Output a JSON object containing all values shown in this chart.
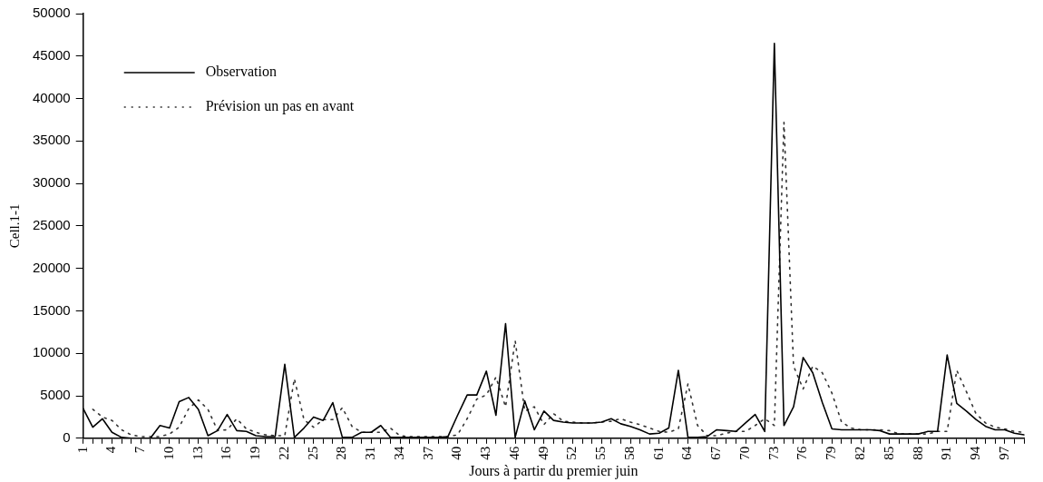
{
  "chart_data": {
    "type": "line",
    "xlabel": "Jours à partir du premier juin",
    "ylabel": "Cell.1-1",
    "categories": [
      "1",
      null,
      null,
      "4",
      null,
      null,
      "7",
      null,
      null,
      "10",
      null,
      null,
      "13",
      null,
      null,
      "16",
      null,
      null,
      "19",
      null,
      null,
      "22",
      null,
      null,
      "25",
      null,
      null,
      "28",
      null,
      null,
      "31",
      null,
      null,
      "34",
      null,
      null,
      "37",
      null,
      null,
      "40",
      null,
      null,
      "43",
      null,
      null,
      "46",
      null,
      null,
      "49",
      null,
      null,
      "52",
      null,
      null,
      "55",
      null,
      null,
      "58",
      null,
      null,
      "61",
      null,
      null,
      "64",
      null,
      null,
      "67",
      null,
      null,
      "70",
      null,
      null,
      "73",
      null,
      null,
      "76",
      null,
      null,
      "79",
      null,
      null,
      "82",
      null,
      null,
      "85",
      null,
      null,
      "88",
      null,
      null,
      "91",
      null,
      null,
      "94",
      null,
      null,
      "97",
      null,
      null
    ],
    "series": [
      {
        "name": "Observation",
        "color": "#000000",
        "line_style": "solid",
        "values": [
          3500,
          1300,
          2300,
          700,
          100,
          0,
          0,
          0,
          1500,
          1200,
          4300,
          4800,
          3400,
          300,
          900,
          2800,
          900,
          800,
          300,
          200,
          200,
          8700,
          100,
          1200,
          2500,
          2100,
          4200,
          100,
          100,
          700,
          700,
          1500,
          100,
          100,
          100,
          100,
          100,
          100,
          200,
          2700,
          5100,
          5100,
          7900,
          2700,
          13500,
          100,
          4400,
          1000,
          3200,
          2100,
          1900,
          1800,
          1800,
          1800,
          1900,
          2300,
          1700,
          1400,
          1000,
          500,
          600,
          1200,
          8000,
          100,
          100,
          200,
          1000,
          900,
          800,
          1800,
          2800,
          800,
          46500,
          1500,
          3700,
          9500,
          7700,
          4200,
          1100,
          1000,
          1000,
          1000,
          1000,
          900,
          500,
          500,
          500,
          500,
          800,
          800,
          9800,
          4100,
          3200,
          2200,
          1400,
          1000,
          1000,
          600,
          400
        ]
      },
      {
        "name": "Prévision un pas en avant",
        "color": "#333333",
        "line_style": "dotted",
        "values": [
          null,
          3400,
          2500,
          2100,
          1000,
          400,
          200,
          200,
          200,
          500,
          1300,
          3500,
          4500,
          3400,
          900,
          1000,
          2300,
          1100,
          700,
          400,
          300,
          300,
          7000,
          2200,
          1300,
          2200,
          2200,
          3600,
          1400,
          700,
          700,
          700,
          1200,
          300,
          200,
          200,
          200,
          200,
          200,
          400,
          2300,
          4600,
          5100,
          7200,
          3700,
          11500,
          3200,
          3700,
          1600,
          2900,
          2000,
          1900,
          1800,
          1800,
          1900,
          2000,
          2300,
          1900,
          1600,
          1200,
          800,
          700,
          1100,
          6400,
          1500,
          300,
          300,
          600,
          800,
          800,
          1500,
          2300,
          1500,
          37200,
          8500,
          5800,
          8500,
          7700,
          5300,
          1900,
          1200,
          1000,
          1000,
          1000,
          900,
          500,
          500,
          500,
          500,
          800,
          800,
          8000,
          5500,
          2900,
          1800,
          1300,
          1100,
          800,
          700
        ]
      }
    ],
    "ylim": [
      0,
      50000
    ],
    "yticks": [
      0,
      5000,
      10000,
      15000,
      20000,
      25000,
      30000,
      35000,
      40000,
      45000,
      50000
    ],
    "grid": false,
    "legend": "top left",
    "marker": "none"
  }
}
